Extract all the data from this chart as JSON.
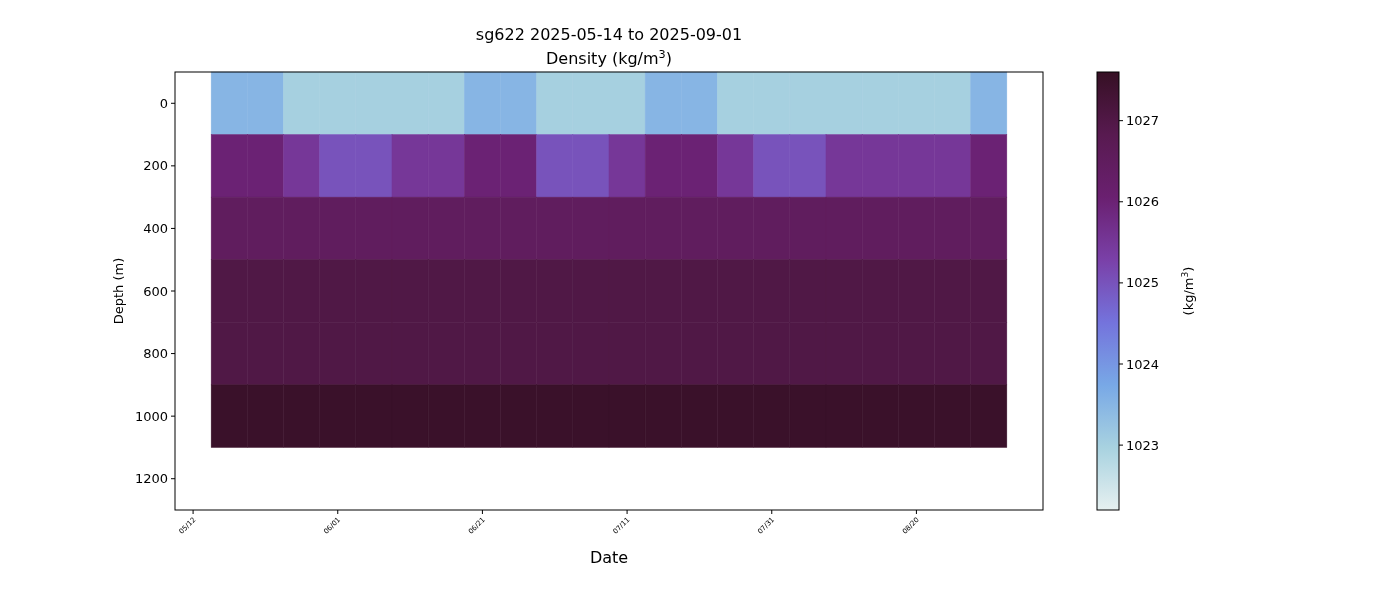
{
  "chart_data": {
    "type": "heatmap",
    "title": "sg622 2025-05-14 to 2025-09-01",
    "subtitle": "Density (kg/m$^{3}$)",
    "xlabel": "Date",
    "ylabel": "Depth (m)",
    "clabel": "(kg/m$^{3}$)",
    "categories": [
      "05/12",
      null,
      null,
      null,
      "06/01",
      null,
      null,
      null,
      "06/21",
      null,
      null,
      null,
      "07/11",
      null,
      null,
      null,
      "07/31",
      null,
      null,
      null,
      "08/20",
      null,
      null,
      null
    ],
    "y_categories": [
      "0",
      "200",
      "400",
      "600",
      "800",
      "1000",
      "1200"
    ],
    "clim": [
      1022.2,
      1027.6
    ],
    "cticks": [
      1023,
      1024,
      1025,
      1026,
      1027
    ],
    "grid": false,
    "cells": [
      [
        null,
        1023.5,
        1023.5,
        1023,
        1023,
        1023,
        1023,
        1023,
        1023.5,
        1023.5,
        1023,
        1023,
        1023,
        1023.5,
        1023.5,
        1023,
        1023,
        1023,
        1023,
        1023,
        1023,
        1023,
        1023.5,
        null
      ],
      [
        null,
        1026,
        1026,
        1025.5,
        1025,
        1025,
        1025.5,
        1025.5,
        1026,
        1026,
        1025,
        1025,
        1025.5,
        1026,
        1026,
        1025.5,
        1025,
        1025,
        1025.5,
        1025.5,
        1025.5,
        1025.5,
        1026,
        null
      ],
      [
        null,
        1026.5,
        1026.5,
        1026.5,
        1026.5,
        1026.5,
        1026.5,
        1026.5,
        1026.5,
        1026.5,
        1026.5,
        1026.5,
        1026.5,
        1026.5,
        1026.5,
        1026.5,
        1026.5,
        1026.5,
        1026.5,
        1026.5,
        1026.5,
        1026.5,
        1026.5,
        null
      ],
      [
        null,
        1027,
        1027,
        1027,
        1027,
        1027,
        1027,
        1027,
        1027,
        1027,
        1027,
        1027,
        1027,
        1027,
        1027,
        1027,
        1027,
        1027,
        1027,
        1027,
        1027,
        1027,
        1027,
        null
      ],
      [
        null,
        1027,
        1027,
        1027,
        1027,
        1027,
        1027,
        1027,
        1027,
        1027,
        1027,
        1027,
        1027,
        1027,
        1027,
        1027,
        1027,
        1027,
        1027,
        1027,
        1027,
        1027,
        1027,
        null
      ],
      [
        null,
        1027.5,
        1027.5,
        1027.5,
        1027.5,
        1027.5,
        1027.5,
        1027.5,
        1027.5,
        1027.5,
        1027.5,
        1027.5,
        1027.5,
        1027.5,
        1027.5,
        1027.5,
        1027.5,
        1027.5,
        1027.5,
        1027.5,
        1027.5,
        1027.5,
        1027.5,
        null
      ],
      [
        null,
        null,
        null,
        null,
        null,
        null,
        null,
        null,
        null,
        null,
        null,
        null,
        null,
        null,
        null,
        null,
        null,
        null,
        null,
        null,
        null,
        null,
        null,
        null
      ]
    ]
  }
}
